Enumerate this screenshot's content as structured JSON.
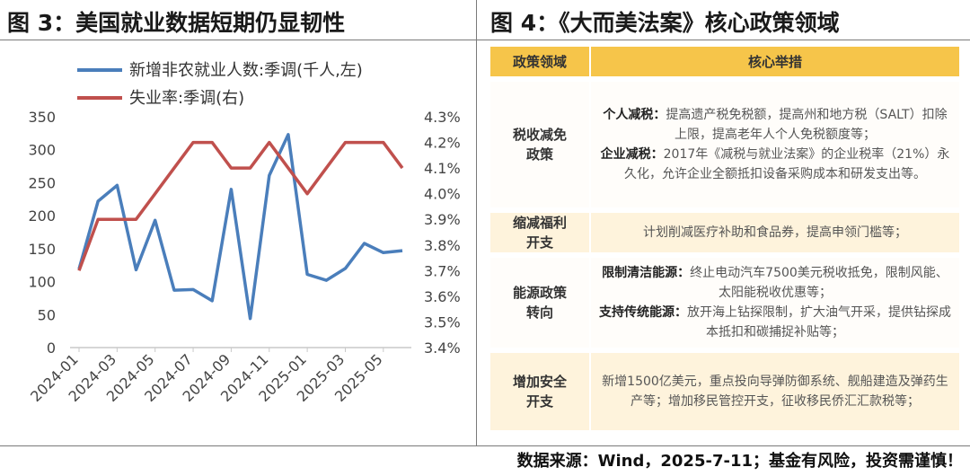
{
  "left_panel": {
    "title": "图 3：美国就业数据短期仍显韧性"
  },
  "right_panel": {
    "title": "图 4：《大而美法案》核心政策领域"
  },
  "footer": {
    "text": "数据来源：Wind，2025-7-11；基金有风险，投资需谨慎！"
  },
  "chart_data": {
    "type": "line",
    "x": [
      "2024-01",
      "2024-02",
      "2024-03",
      "2024-04",
      "2024-05",
      "2024-06",
      "2024-07",
      "2024-08",
      "2024-09",
      "2024-10",
      "2024-11",
      "2024-12",
      "2025-01",
      "2025-02",
      "2025-03",
      "2025-04",
      "2025-05",
      "2025-06"
    ],
    "x_tick_labels": [
      "2024-01",
      "2024-03",
      "2024-05",
      "2024-07",
      "2024-09",
      "2024-11",
      "2025-01",
      "2025-03",
      "2025-05"
    ],
    "series": [
      {
        "name": "新增非农就业人数:季调(千人,左)",
        "axis": "left",
        "color": "#4a7ebb",
        "values": [
          119,
          222,
          246,
          118,
          193,
          87,
          88,
          71,
          240,
          44,
          261,
          323,
          111,
          102,
          120,
          158,
          144,
          147
        ]
      },
      {
        "name": "失业率:季调(右)",
        "axis": "right",
        "color": "#c0504d",
        "values": [
          3.7,
          3.9,
          3.9,
          3.9,
          4.0,
          4.1,
          4.2,
          4.2,
          4.1,
          4.1,
          4.2,
          4.1,
          4.0,
          4.1,
          4.2,
          4.2,
          4.2,
          4.1
        ]
      }
    ],
    "left_axis": {
      "ylim": [
        0,
        350
      ],
      "ticks": [
        "0",
        "50",
        "100",
        "150",
        "200",
        "250",
        "300",
        "350"
      ]
    },
    "right_axis": {
      "ylim": [
        3.4,
        4.3
      ],
      "ticks": [
        "3.4%",
        "3.5%",
        "3.6%",
        "3.7%",
        "3.8%",
        "3.9%",
        "4.0%",
        "4.1%",
        "4.2%",
        "4.3%"
      ]
    },
    "legend_position": "top",
    "grid": false
  },
  "table": {
    "headers": [
      "政策领域",
      "核心举措"
    ],
    "rows": [
      {
        "category": "税收减免政策",
        "items": [
          {
            "label": "个人减税：",
            "text": "提高遗产税免税额，提高州和地方税（SALT）扣除上限，提高老年人个人免税额度等；"
          },
          {
            "label": "企业减税：",
            "text": "2017年《减税与就业法案》的企业税率（21%）永久化，允许企业全额抵扣设备采购成本和研发支出等。"
          }
        ]
      },
      {
        "category": "缩减福利开支",
        "items": [
          {
            "label": "",
            "text": "计划削减医疗补助和食品券，提高申领门槛等；"
          }
        ]
      },
      {
        "category": "能源政策转向",
        "items": [
          {
            "label": "限制清洁能源：",
            "text": "终止电动汽车7500美元税收抵免，限制风能、太阳能税收优惠等；"
          },
          {
            "label": "支持传统能源：",
            "text": "放开海上钻探限制，扩大油气开采，提供钻探成本抵扣和碳捕捉补贴等；"
          }
        ]
      },
      {
        "category": "增加安全开支",
        "items": [
          {
            "label": "",
            "text": "新增1500亿美元，重点投向导弹防御系统、舰船建造及弹药生产等；增加移民管控开支，征收移民侨汇汇款税等；"
          }
        ]
      }
    ]
  }
}
